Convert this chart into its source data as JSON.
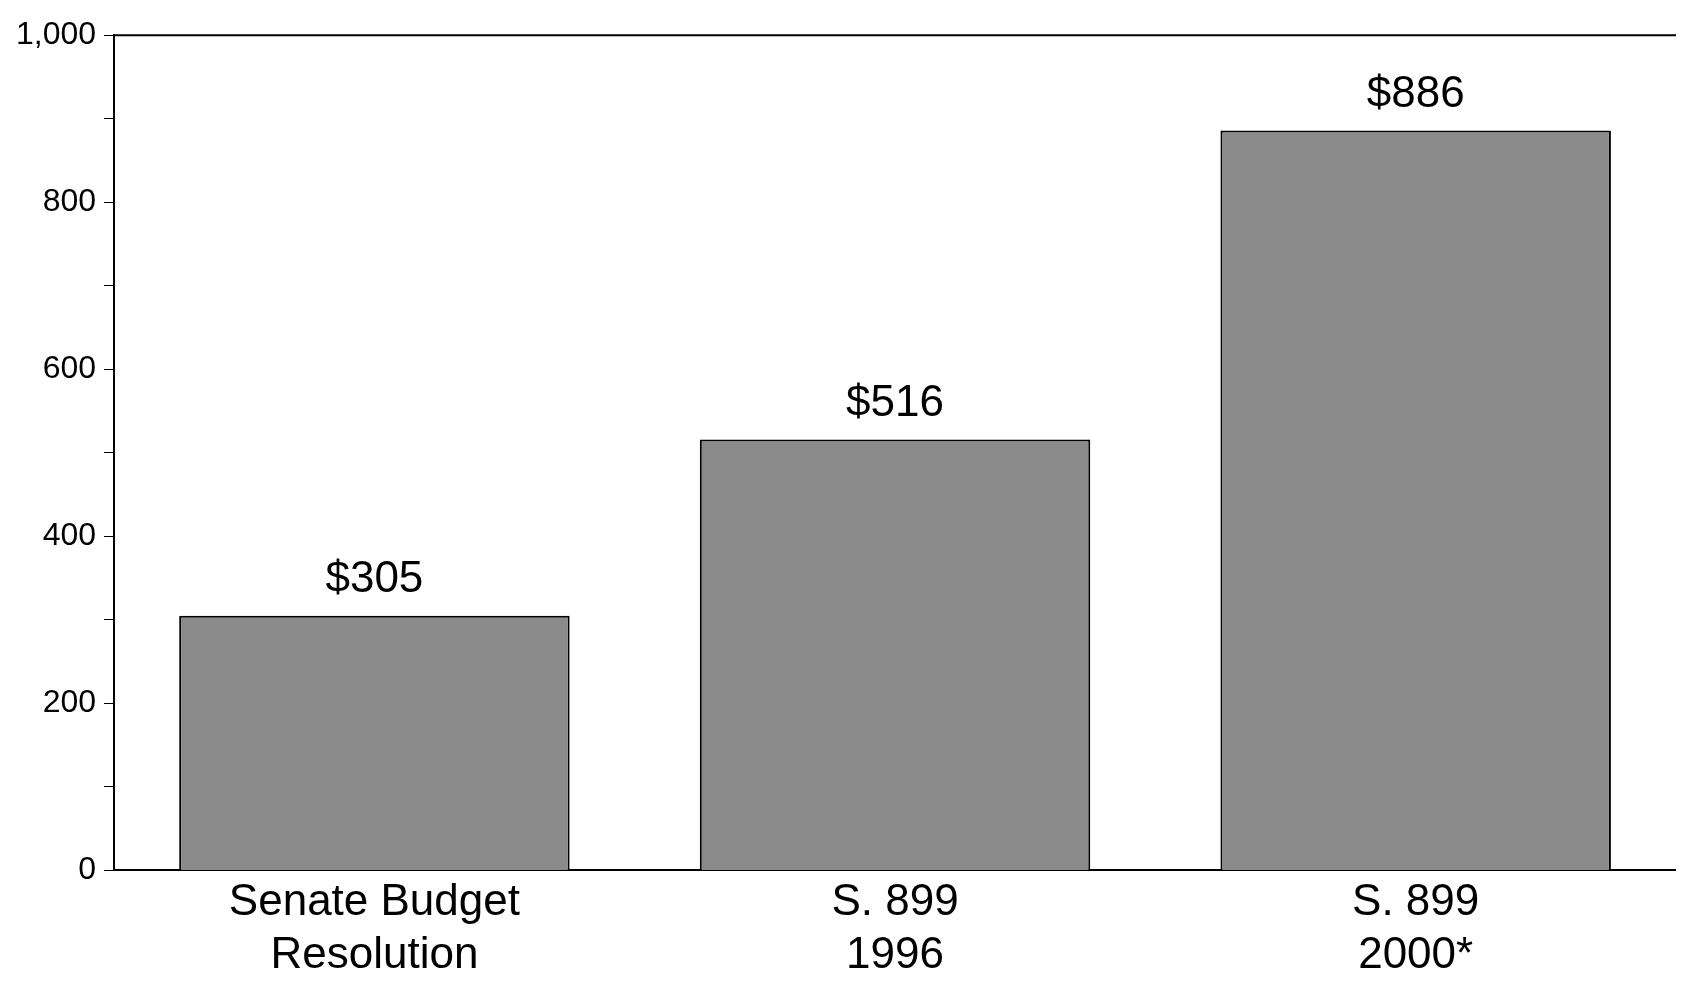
{
  "chart_data": {
    "type": "bar",
    "categories": [
      "Senate Budget\nResolution",
      "S. 899\n1996",
      "S. 899\n2000*"
    ],
    "values": [
      305,
      516,
      886
    ],
    "color": "#8a8a8a",
    "value_labels": [
      "$305",
      "$516",
      "$886"
    ],
    "ylim": [
      0,
      1000
    ],
    "yticks": [
      0,
      {
        "value": 100,
        "label": null
      },
      200,
      {
        "value": 300,
        "label": null
      },
      400,
      {
        "value": 500,
        "label": null
      },
      600,
      {
        "value": 700,
        "label": null
      },
      800,
      {
        "value": 900,
        "label": null
      },
      {
        "value": 1000,
        "label": "1,000"
      }
    ],
    "grid": false,
    "legend": false
  }
}
